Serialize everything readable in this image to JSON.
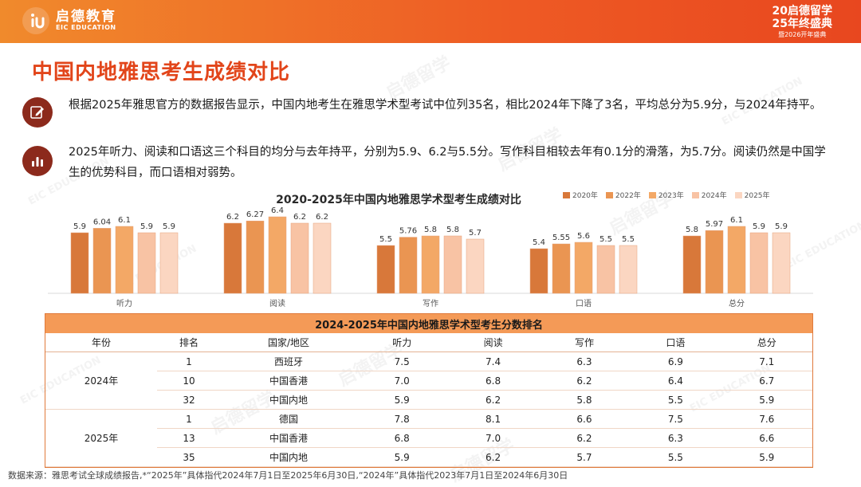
{
  "header": {
    "brand_cn": "启德教育",
    "brand_en": "EIC EDUCATION",
    "event_line1": "20启德留学",
    "event_line2": "25年终盛典",
    "event_line3": "暨2026开年盛典",
    "watermark_cn": "启德留学",
    "watermark_en": "EIC EDUCATION"
  },
  "page_title": "中国内地雅思考生成绩对比",
  "points": [
    {
      "icon": "edit-icon",
      "text": "根据2025年雅思官方的数据报告显示，中国内地考生在雅思学术型考试中位列35名，相比2024年下降了3名，平均总分为5.9分，与2024年持平。"
    },
    {
      "icon": "bar-chart-icon",
      "text": "2025年听力、阅读和口语这三个科目的均分与去年持平，分别为5.9、6.2与5.5分。写作科目相较去年有0.1分的滑落，为5.7分。阅读仍然是中国学生的优势科目，而口语相对弱势。"
    }
  ],
  "chart_data": {
    "type": "bar",
    "title": "2020-2025年中国内地雅思学术型考生成绩对比",
    "categories": [
      "听力",
      "阅读",
      "写作",
      "口语",
      "总分"
    ],
    "series": [
      {
        "name": "2020年",
        "values": [
          5.9,
          6.2,
          5.5,
          5.4,
          5.8
        ],
        "color": "#d8783a"
      },
      {
        "name": "2022年",
        "values": [
          6.04,
          6.27,
          5.76,
          5.55,
          5.97
        ],
        "color": "#ea9552"
      },
      {
        "name": "2023年",
        "values": [
          6.1,
          6.4,
          5.8,
          5.6,
          6.1
        ],
        "color": "#f3a866"
      },
      {
        "name": "2024年",
        "values": [
          5.9,
          6.2,
          5.8,
          5.5,
          5.9
        ],
        "color": "#f8c3a4"
      },
      {
        "name": "2025年",
        "values": [
          5.9,
          6.2,
          5.7,
          5.5,
          5.9
        ],
        "color": "#fbd6c1"
      }
    ],
    "data_labels": [
      [
        "5.9",
        "6.2",
        "5.5",
        "5.4",
        "5.8"
      ],
      [
        "6.04",
        "6.27",
        "5.76",
        "5.55",
        "5.97"
      ],
      [
        "6.1",
        "6.4",
        "5.8",
        "5.6",
        "6.1"
      ],
      [
        "5.9",
        "6.2",
        "5.8",
        "5.5",
        "5.9"
      ],
      [
        "5.9",
        "6.2",
        "5.7",
        "5.5",
        "5.9"
      ]
    ],
    "ylim": [
      4,
      6.5
    ],
    "grid": false,
    "legend": "top-right"
  },
  "table": {
    "title": "2024-2025年中国内地雅思学术型考生分数排名",
    "headers": [
      "年份",
      "排名",
      "国家/地区",
      "听力",
      "阅读",
      "写作",
      "口语",
      "总分"
    ],
    "groups": [
      {
        "year": "2024年",
        "rows": [
          [
            "1",
            "西班牙",
            "7.5",
            "7.4",
            "6.3",
            "6.9",
            "7.1"
          ],
          [
            "10",
            "中国香港",
            "7.0",
            "6.8",
            "6.2",
            "6.4",
            "6.7"
          ],
          [
            "32",
            "中国内地",
            "5.9",
            "6.2",
            "5.8",
            "5.5",
            "5.9"
          ]
        ]
      },
      {
        "year": "2025年",
        "rows": [
          [
            "1",
            "德国",
            "7.8",
            "8.1",
            "6.6",
            "7.5",
            "7.6"
          ],
          [
            "13",
            "中国香港",
            "6.8",
            "7.0",
            "6.2",
            "6.3",
            "6.6"
          ],
          [
            "35",
            "中国内地",
            "5.9",
            "6.2",
            "5.7",
            "5.5",
            "5.9"
          ]
        ]
      }
    ]
  },
  "footer": "数据来源：雅思考试全球成绩报告,*“2025年”具体指代2024年7月1日至2025年6月30日,“2024年”具体指代2023年7月1日至2024年6月30日"
}
